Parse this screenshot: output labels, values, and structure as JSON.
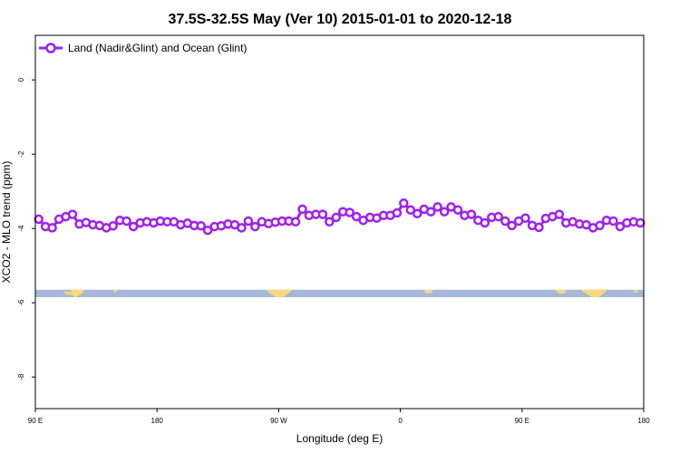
{
  "chart_data": {
    "type": "line",
    "title": "37.5S-32.5S May (Ver 10)   2015-01-01 to 2020-12-18",
    "xlabel": "Longitude (deg E)",
    "ylabel": "XCO2 - MLO trend (ppm)",
    "x_tick_labels": [
      "90 E",
      "180",
      "90 W",
      "0",
      "90 E",
      "180"
    ],
    "x_tick_values": [
      90,
      180,
      270,
      360,
      450,
      540
    ],
    "xlim": [
      90,
      540
    ],
    "y_ticks": [
      0,
      -2,
      -4,
      -6,
      -8
    ],
    "ylim": [
      -8.85,
      1.2
    ],
    "grid": false,
    "legend_position": "top-left",
    "series": [
      {
        "name": "Land (Nadir&Glint) and Ocean (Glint)",
        "color": "#a020f0",
        "x": [
          92.5,
          97.5,
          102.5,
          107.5,
          112.5,
          117.5,
          122.5,
          127.5,
          132.5,
          137.5,
          142.5,
          147.5,
          152.5,
          157.5,
          162.5,
          167.5,
          172.5,
          177.5,
          182.5,
          187.5,
          192.5,
          197.5,
          202.5,
          207.5,
          212.5,
          217.5,
          222.5,
          227.5,
          232.5,
          237.5,
          242.5,
          247.5,
          252.5,
          257.5,
          262.5,
          267.5,
          272.5,
          277.5,
          282.5,
          287.5,
          292.5,
          297.5,
          302.5,
          307.5,
          312.5,
          317.5,
          322.5,
          327.5,
          332.5,
          337.5,
          342.5,
          347.5,
          352.5,
          357.5,
          362.5,
          367.5,
          372.5,
          377.5,
          382.5,
          387.5,
          392.5,
          397.5,
          402.5,
          407.5,
          412.5,
          417.5,
          422.5,
          427.5,
          432.5,
          437.5,
          442.5,
          447.5,
          452.5,
          457.5,
          462.5,
          467.5,
          472.5,
          477.5,
          482.5,
          487.5,
          492.5,
          497.5,
          502.5,
          507.5,
          512.5,
          517.5,
          522.5,
          527.5,
          532.5,
          537.5
        ],
        "y": [
          -3.75,
          -3.95,
          -3.98,
          -3.75,
          -3.68,
          -3.62,
          -3.88,
          -3.84,
          -3.9,
          -3.92,
          -3.98,
          -3.93,
          -3.78,
          -3.8,
          -3.95,
          -3.85,
          -3.82,
          -3.85,
          -3.8,
          -3.82,
          -3.82,
          -3.9,
          -3.86,
          -3.92,
          -3.93,
          -4.05,
          -3.95,
          -3.93,
          -3.88,
          -3.9,
          -3.98,
          -3.8,
          -3.95,
          -3.82,
          -3.87,
          -3.83,
          -3.8,
          -3.8,
          -3.82,
          -3.48,
          -3.65,
          -3.62,
          -3.62,
          -3.82,
          -3.7,
          -3.55,
          -3.57,
          -3.68,
          -3.78,
          -3.7,
          -3.72,
          -3.65,
          -3.65,
          -3.58,
          -3.32,
          -3.5,
          -3.6,
          -3.48,
          -3.55,
          -3.42,
          -3.55,
          -3.42,
          -3.5,
          -3.65,
          -3.62,
          -3.78,
          -3.85,
          -3.7,
          -3.68,
          -3.8,
          -3.92,
          -3.8,
          -3.72,
          -3.92,
          -3.97,
          -3.73,
          -3.68,
          -3.62,
          -3.85,
          -3.82,
          -3.88,
          -3.9,
          -3.98,
          -3.92,
          -3.78,
          -3.8,
          -3.95,
          -3.85,
          -3.82,
          -3.85
        ]
      }
    ],
    "map_strip": {
      "y_top": -5.65,
      "y_bottom": -5.85,
      "ocean_color": "#a5b8d8",
      "land_color": "#fbd87a"
    }
  }
}
